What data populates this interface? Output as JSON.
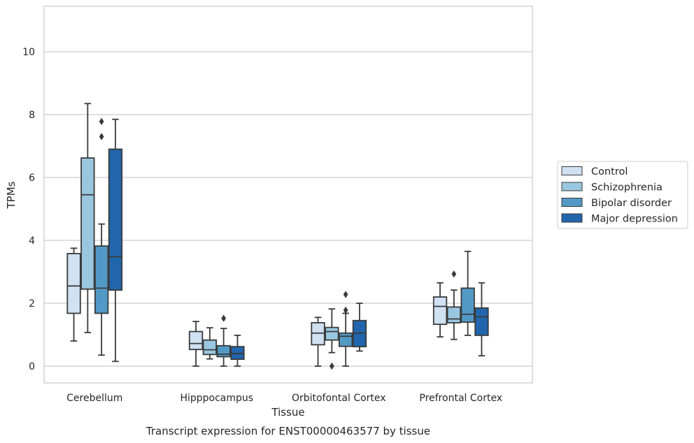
{
  "chart_data": {
    "type": "box",
    "title": "Transcript expression for ENST00000463577 by tissue",
    "xlabel": "Tissue",
    "ylabel": "TPMs",
    "ylim": [
      -0.5,
      11.45
    ],
    "yticks": [
      0,
      2,
      4,
      6,
      8,
      10
    ],
    "grid": true,
    "legend_position": "right",
    "categories": [
      "Cerebellum",
      "Hipppocampus",
      "Orbitofontal Cortex",
      "Prefrontal Cortex"
    ],
    "series": [
      {
        "name": "Control",
        "color": "#d0e1f2",
        "boxes": [
          {
            "whislo": 0.8,
            "q1": 1.68,
            "med": 2.55,
            "q3": 3.58,
            "whishi": 3.75,
            "fliers": []
          },
          {
            "whislo": 0.0,
            "q1": 0.53,
            "med": 0.72,
            "q3": 1.1,
            "whishi": 1.42,
            "fliers": []
          },
          {
            "whislo": 0.0,
            "q1": 0.68,
            "med": 1.05,
            "q3": 1.38,
            "whishi": 1.55,
            "fliers": []
          },
          {
            "whislo": 0.93,
            "q1": 1.33,
            "med": 1.9,
            "q3": 2.2,
            "whishi": 2.65,
            "fliers": []
          }
        ]
      },
      {
        "name": "Schizophrenia",
        "color": "#9ac7e0",
        "boxes": [
          {
            "whislo": 1.07,
            "q1": 2.45,
            "med": 5.45,
            "q3": 6.62,
            "whishi": 8.35,
            "fliers": []
          },
          {
            "whislo": 0.23,
            "q1": 0.37,
            "med": 0.52,
            "q3": 0.83,
            "whishi": 1.22,
            "fliers": []
          },
          {
            "whislo": 0.43,
            "q1": 0.83,
            "med": 1.1,
            "q3": 1.23,
            "whishi": 1.82,
            "fliers": [
              0.0
            ]
          },
          {
            "whislo": 0.85,
            "q1": 1.38,
            "med": 1.5,
            "q3": 1.88,
            "whishi": 2.42,
            "fliers": [
              2.93
            ]
          }
        ]
      },
      {
        "name": "Bipolar disorder",
        "color": "#5399c6",
        "boxes": [
          {
            "whislo": 0.35,
            "q1": 1.68,
            "med": 2.48,
            "q3": 3.82,
            "whishi": 4.52,
            "fliers": [
              7.3,
              7.78
            ]
          },
          {
            "whislo": 0.0,
            "q1": 0.3,
            "med": 0.38,
            "q3": 0.65,
            "whishi": 1.2,
            "fliers": [
              1.52
            ]
          },
          {
            "whislo": 0.0,
            "q1": 0.63,
            "med": 0.95,
            "q3": 1.05,
            "whishi": 1.68,
            "fliers": [
              1.78,
              2.28
            ]
          },
          {
            "whislo": 0.98,
            "q1": 1.4,
            "med": 1.65,
            "q3": 2.48,
            "whishi": 3.65,
            "fliers": []
          }
        ]
      },
      {
        "name": "Major depression",
        "color": "#2166ac",
        "boxes": [
          {
            "whislo": 0.15,
            "q1": 2.42,
            "med": 3.48,
            "q3": 6.9,
            "whishi": 7.85,
            "fliers": []
          },
          {
            "whislo": 0.0,
            "q1": 0.22,
            "med": 0.4,
            "q3": 0.62,
            "whishi": 0.98,
            "fliers": []
          },
          {
            "whislo": 0.48,
            "q1": 0.62,
            "med": 1.05,
            "q3": 1.45,
            "whishi": 2.0,
            "fliers": []
          },
          {
            "whislo": 0.33,
            "q1": 0.98,
            "med": 1.57,
            "q3": 1.85,
            "whishi": 2.65,
            "fliers": []
          }
        ]
      }
    ]
  }
}
